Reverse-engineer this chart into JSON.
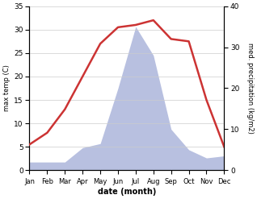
{
  "months": [
    "Jan",
    "Feb",
    "Mar",
    "Apr",
    "May",
    "Jun",
    "Jul",
    "Aug",
    "Sep",
    "Oct",
    "Nov",
    "Dec"
  ],
  "temperature": [
    5.5,
    8.0,
    13.0,
    20.0,
    27.0,
    30.5,
    31.0,
    32.0,
    28.0,
    27.5,
    15.0,
    5.0
  ],
  "precipitation": [
    2.0,
    2.0,
    2.0,
    5.5,
    6.5,
    20.0,
    35.0,
    28.0,
    10.0,
    5.0,
    3.0,
    3.5
  ],
  "temp_color": "#cc3333",
  "precip_fill_color": "#b8c0e0",
  "temp_ylim": [
    0,
    35
  ],
  "precip_ylim": [
    0,
    40
  ],
  "temp_yticks": [
    0,
    5,
    10,
    15,
    20,
    25,
    30,
    35
  ],
  "precip_yticks": [
    0,
    10,
    20,
    30,
    40
  ],
  "ylabel_left": "max temp (C)",
  "ylabel_right": "med. precipitation (kg/m2)",
  "xlabel": "date (month)",
  "bg_color": "#ffffff",
  "grid_color": "#cccccc"
}
